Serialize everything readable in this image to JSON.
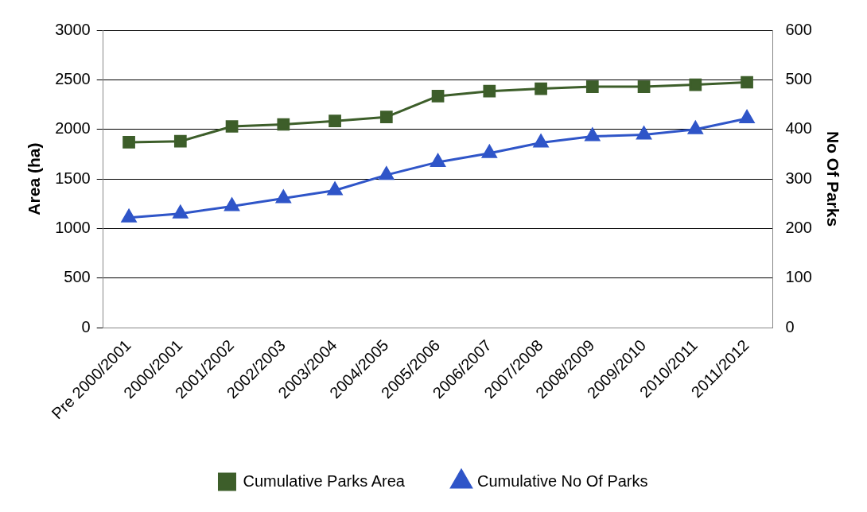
{
  "chart_data": {
    "type": "line",
    "ylabel": "Area (ha)",
    "y2label": "No Of Parks",
    "categories": [
      "Pre 2000/2001",
      "2000/2001",
      "2001/2002",
      "2002/2003",
      "2003/2004",
      "2004/2005",
      "2005/2006",
      "2006/2007",
      "2007/2008",
      "2008/2009",
      "2009/2010",
      "2010/2011",
      "2011/2012"
    ],
    "series": [
      {
        "name": "Cumulative Parks Area",
        "color": "#3d5e2a",
        "marker": "square",
        "values": [
          1870,
          1880,
          2030,
          2050,
          2085,
          2125,
          2335,
          2385,
          2410,
          2430,
          2430,
          2450,
          2475
        ]
      },
      {
        "name": "Cumulative No Of Parks",
        "color": "#2f55c8",
        "marker": "triangle",
        "axis": "y2",
        "values": [
          222,
          230,
          245,
          261,
          277,
          308,
          334,
          352,
          373,
          386,
          389,
          400,
          422
        ]
      }
    ],
    "ylim": [
      0,
      3000
    ],
    "yticks": [
      0,
      500,
      1000,
      1500,
      2000,
      2500,
      3000
    ],
    "y2lim": [
      0,
      600
    ],
    "y2ticks": [
      0,
      100,
      200,
      300,
      400,
      500,
      600
    ],
    "grid": "y",
    "legend": "bottom",
    "line_style": "solid"
  }
}
